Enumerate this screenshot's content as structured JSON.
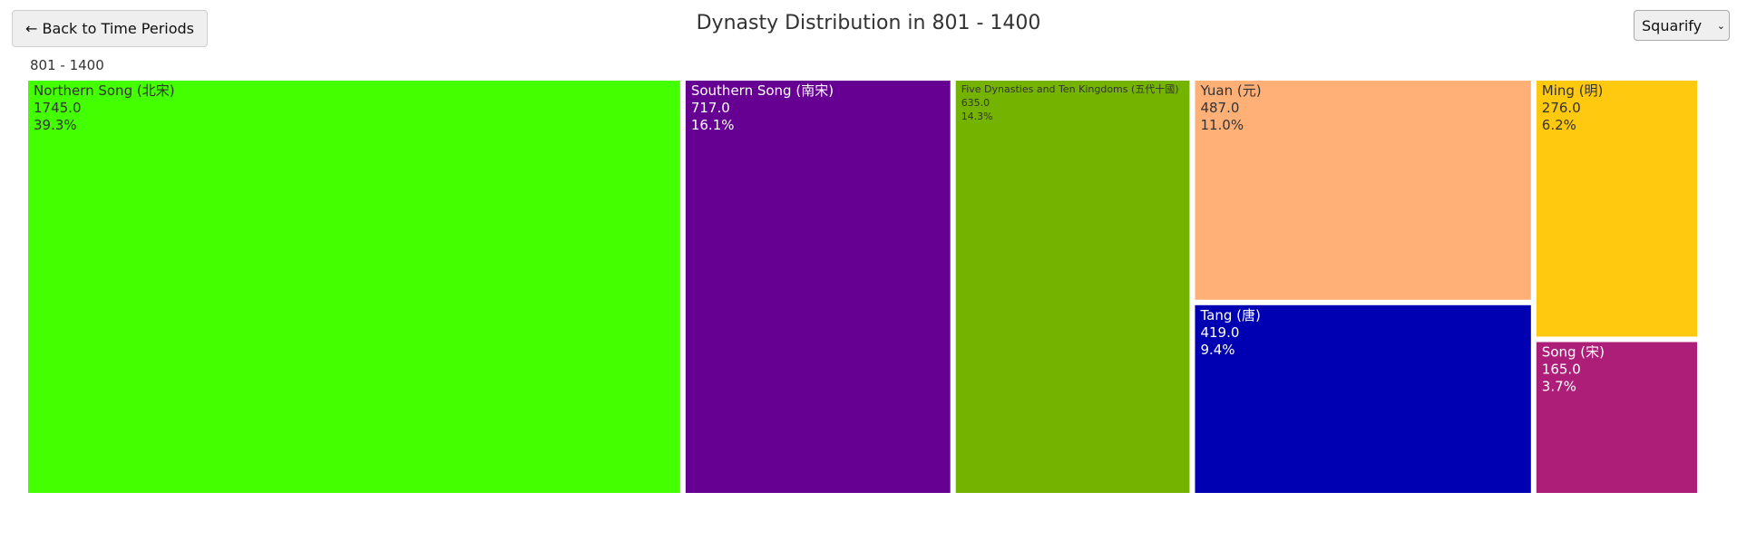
{
  "back_button": {
    "label": "← Back to Time Periods"
  },
  "title": "Dynasty Distribution in 801 - 1400",
  "layout_select": {
    "selected": "Squarify"
  },
  "period_label": "801 - 1400",
  "chart_data": {
    "type": "treemap",
    "items": [
      {
        "name": "Northern Song (北宋)",
        "value": "1745.0",
        "percent": "39.3%",
        "color": "#44ff00",
        "text_color": "#333333"
      },
      {
        "name": "Southern Song (南宋)",
        "value": "717.0",
        "percent": "16.1%",
        "color": "#660093",
        "text_color": "#ffffff"
      },
      {
        "name": "Five Dynasties and Ten Kingdoms (五代十國)",
        "value": "635.0",
        "percent": "14.3%",
        "color": "#74b400",
        "text_color": "#333333"
      },
      {
        "name": "Yuan (元)",
        "value": "487.0",
        "percent": "11.0%",
        "color": "#ffb077",
        "text_color": "#333333"
      },
      {
        "name": "Tang (唐)",
        "value": "419.0",
        "percent": "9.4%",
        "color": "#0000b2",
        "text_color": "#ffffff"
      },
      {
        "name": "Ming (明)",
        "value": "276.0",
        "percent": "6.2%",
        "color": "#ffc90f",
        "text_color": "#333333"
      },
      {
        "name": "Song (宋)",
        "value": "165.0",
        "percent": "3.7%",
        "color": "#ad1e79",
        "text_color": "#ffffff"
      }
    ]
  }
}
